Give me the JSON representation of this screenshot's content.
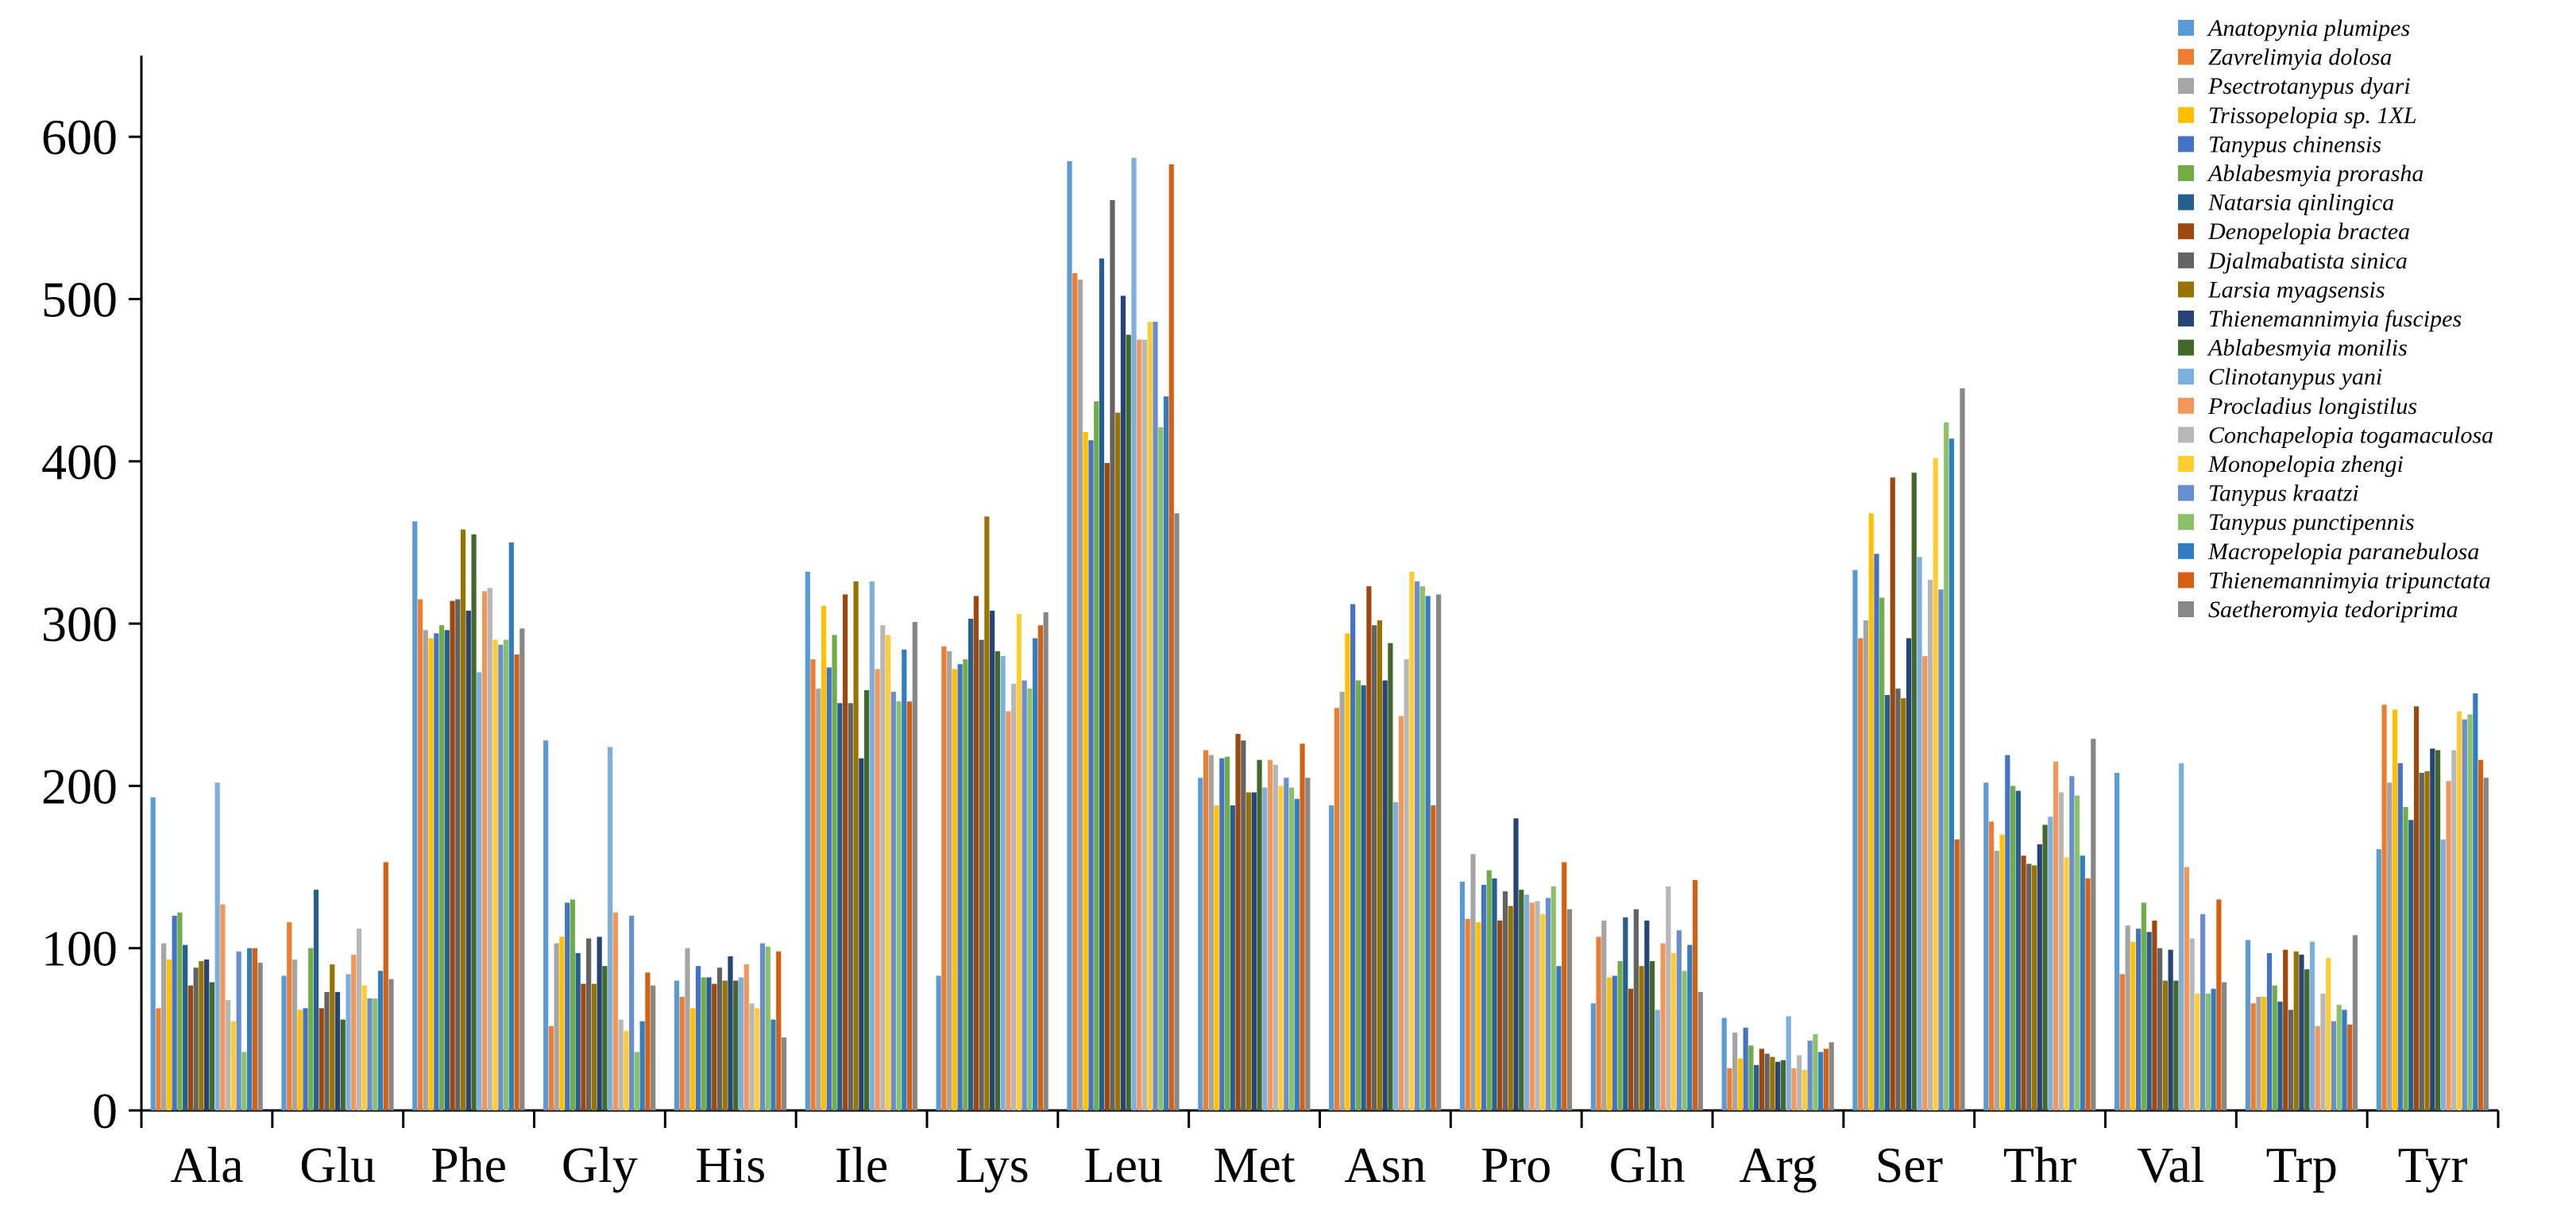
{
  "chart_data": {
    "type": "bar",
    "title": "",
    "xlabel": "",
    "ylabel": "",
    "ylim": [
      0,
      650
    ],
    "yticks": [
      0,
      100,
      200,
      300,
      400,
      500,
      600
    ],
    "grid": false,
    "legend_position": "top-right",
    "categories": [
      "Ala",
      "Glu",
      "Phe",
      "Gly",
      "His",
      "Ile",
      "Lys",
      "Leu",
      "Met",
      "Asn",
      "Pro",
      "Gln",
      "Arg",
      "Ser",
      "Thr",
      "Val",
      "Trp",
      "Tyr"
    ],
    "series": [
      {
        "name": "Anatopynia plumipes",
        "color": "#5B9BD5",
        "values": [
          193,
          83,
          363,
          228,
          80,
          332,
          83,
          585,
          205,
          188,
          141,
          66,
          57,
          333,
          202,
          208,
          105,
          161
        ]
      },
      {
        "name": "Zavrelimyia dolosa",
        "color": "#ED7D31",
        "values": [
          63,
          116,
          315,
          52,
          70,
          278,
          286,
          516,
          222,
          248,
          118,
          107,
          26,
          291,
          178,
          84,
          66,
          250
        ]
      },
      {
        "name": "Psectrotanypus dyari",
        "color": "#A5A5A5",
        "values": [
          103,
          93,
          296,
          103,
          100,
          260,
          283,
          512,
          219,
          258,
          158,
          117,
          48,
          302,
          160,
          114,
          70,
          202
        ]
      },
      {
        "name": "Trissopelopia sp. 1XL",
        "color": "#FFC000",
        "values": [
          93,
          62,
          291,
          107,
          63,
          311,
          272,
          418,
          188,
          294,
          116,
          82,
          32,
          368,
          170,
          104,
          70,
          247
        ]
      },
      {
        "name": "Tanypus chinensis",
        "color": "#4472C4",
        "values": [
          120,
          63,
          294,
          128,
          89,
          273,
          275,
          413,
          217,
          312,
          139,
          83,
          51,
          343,
          219,
          112,
          97,
          214
        ]
      },
      {
        "name": "Ablabesmyia prorasha",
        "color": "#70AD47",
        "values": [
          122,
          100,
          299,
          130,
          82,
          293,
          278,
          437,
          218,
          265,
          148,
          92,
          40,
          316,
          200,
          128,
          77,
          187
        ]
      },
      {
        "name": "Natarsia qinlingica",
        "color": "#255E91",
        "values": [
          102,
          136,
          296,
          97,
          82,
          251,
          303,
          525,
          188,
          262,
          143,
          119,
          28,
          256,
          197,
          110,
          67,
          179
        ]
      },
      {
        "name": "Denopelopia bractea",
        "color": "#9E480E",
        "values": [
          77,
          63,
          314,
          78,
          78,
          318,
          317,
          399,
          232,
          323,
          117,
          75,
          38,
          390,
          157,
          117,
          99,
          249
        ]
      },
      {
        "name": "Djalmabatista sinica",
        "color": "#636363",
        "values": [
          88,
          73,
          315,
          106,
          88,
          251,
          290,
          561,
          228,
          299,
          135,
          124,
          35,
          260,
          152,
          100,
          62,
          208
        ]
      },
      {
        "name": "Larsia myagsensis",
        "color": "#997300",
        "values": [
          92,
          90,
          358,
          78,
          80,
          326,
          366,
          430,
          196,
          302,
          126,
          89,
          33,
          254,
          151,
          80,
          98,
          209
        ]
      },
      {
        "name": "Thienemannimyia fuscipes",
        "color": "#264478",
        "values": [
          93,
          73,
          308,
          107,
          95,
          217,
          308,
          502,
          196,
          265,
          180,
          117,
          30,
          291,
          164,
          99,
          96,
          223
        ]
      },
      {
        "name": "Ablabesmyia monilis",
        "color": "#43682B",
        "values": [
          79,
          56,
          355,
          89,
          80,
          259,
          283,
          478,
          216,
          288,
          136,
          92,
          31,
          393,
          176,
          80,
          87,
          222
        ]
      },
      {
        "name": "Clinotanypus yani",
        "color": "#7CAFDD",
        "values": [
          202,
          84,
          270,
          224,
          82,
          326,
          280,
          587,
          199,
          190,
          133,
          62,
          58,
          341,
          181,
          214,
          104,
          167
        ]
      },
      {
        "name": "Procladius longistilus",
        "color": "#F1975A",
        "values": [
          127,
          96,
          320,
          122,
          90,
          272,
          246,
          475,
          216,
          243,
          128,
          103,
          26,
          280,
          215,
          150,
          52,
          203
        ]
      },
      {
        "name": "Conchapelopia togamaculosa",
        "color": "#B7B7B7",
        "values": [
          68,
          112,
          322,
          56,
          66,
          299,
          263,
          475,
          213,
          278,
          129,
          138,
          34,
          327,
          196,
          106,
          72,
          222
        ]
      },
      {
        "name": "Monopelopia zhengi",
        "color": "#FFCD33",
        "values": [
          55,
          77,
          290,
          49,
          63,
          293,
          306,
          486,
          200,
          332,
          121,
          97,
          25,
          402,
          156,
          72,
          94,
          246
        ]
      },
      {
        "name": "Tanypus kraatzi",
        "color": "#698ED0",
        "values": [
          98,
          69,
          287,
          120,
          103,
          258,
          265,
          486,
          205,
          326,
          131,
          111,
          43,
          321,
          206,
          121,
          55,
          241
        ]
      },
      {
        "name": "Tanypus punctipennis",
        "color": "#8CC168",
        "values": [
          36,
          69,
          290,
          36,
          101,
          252,
          260,
          421,
          199,
          323,
          138,
          86,
          47,
          424,
          194,
          72,
          65,
          244
        ]
      },
      {
        "name": "Macropelopia paranebulosa",
        "color": "#327DC2",
        "values": [
          100,
          86,
          350,
          55,
          56,
          284,
          291,
          440,
          192,
          317,
          89,
          102,
          36,
          414,
          157,
          75,
          62,
          257
        ]
      },
      {
        "name": "Thienemannimyia tripunctata",
        "color": "#D46113",
        "values": [
          100,
          153,
          281,
          85,
          98,
          252,
          299,
          583,
          226,
          188,
          153,
          142,
          38,
          167,
          143,
          130,
          53,
          216
        ]
      },
      {
        "name": "Saetheromyia tedoriprima",
        "color": "#878787",
        "values": [
          91,
          81,
          297,
          77,
          45,
          301,
          307,
          368,
          205,
          318,
          124,
          73,
          42,
          445,
          229,
          79,
          108,
          205
        ]
      }
    ]
  }
}
